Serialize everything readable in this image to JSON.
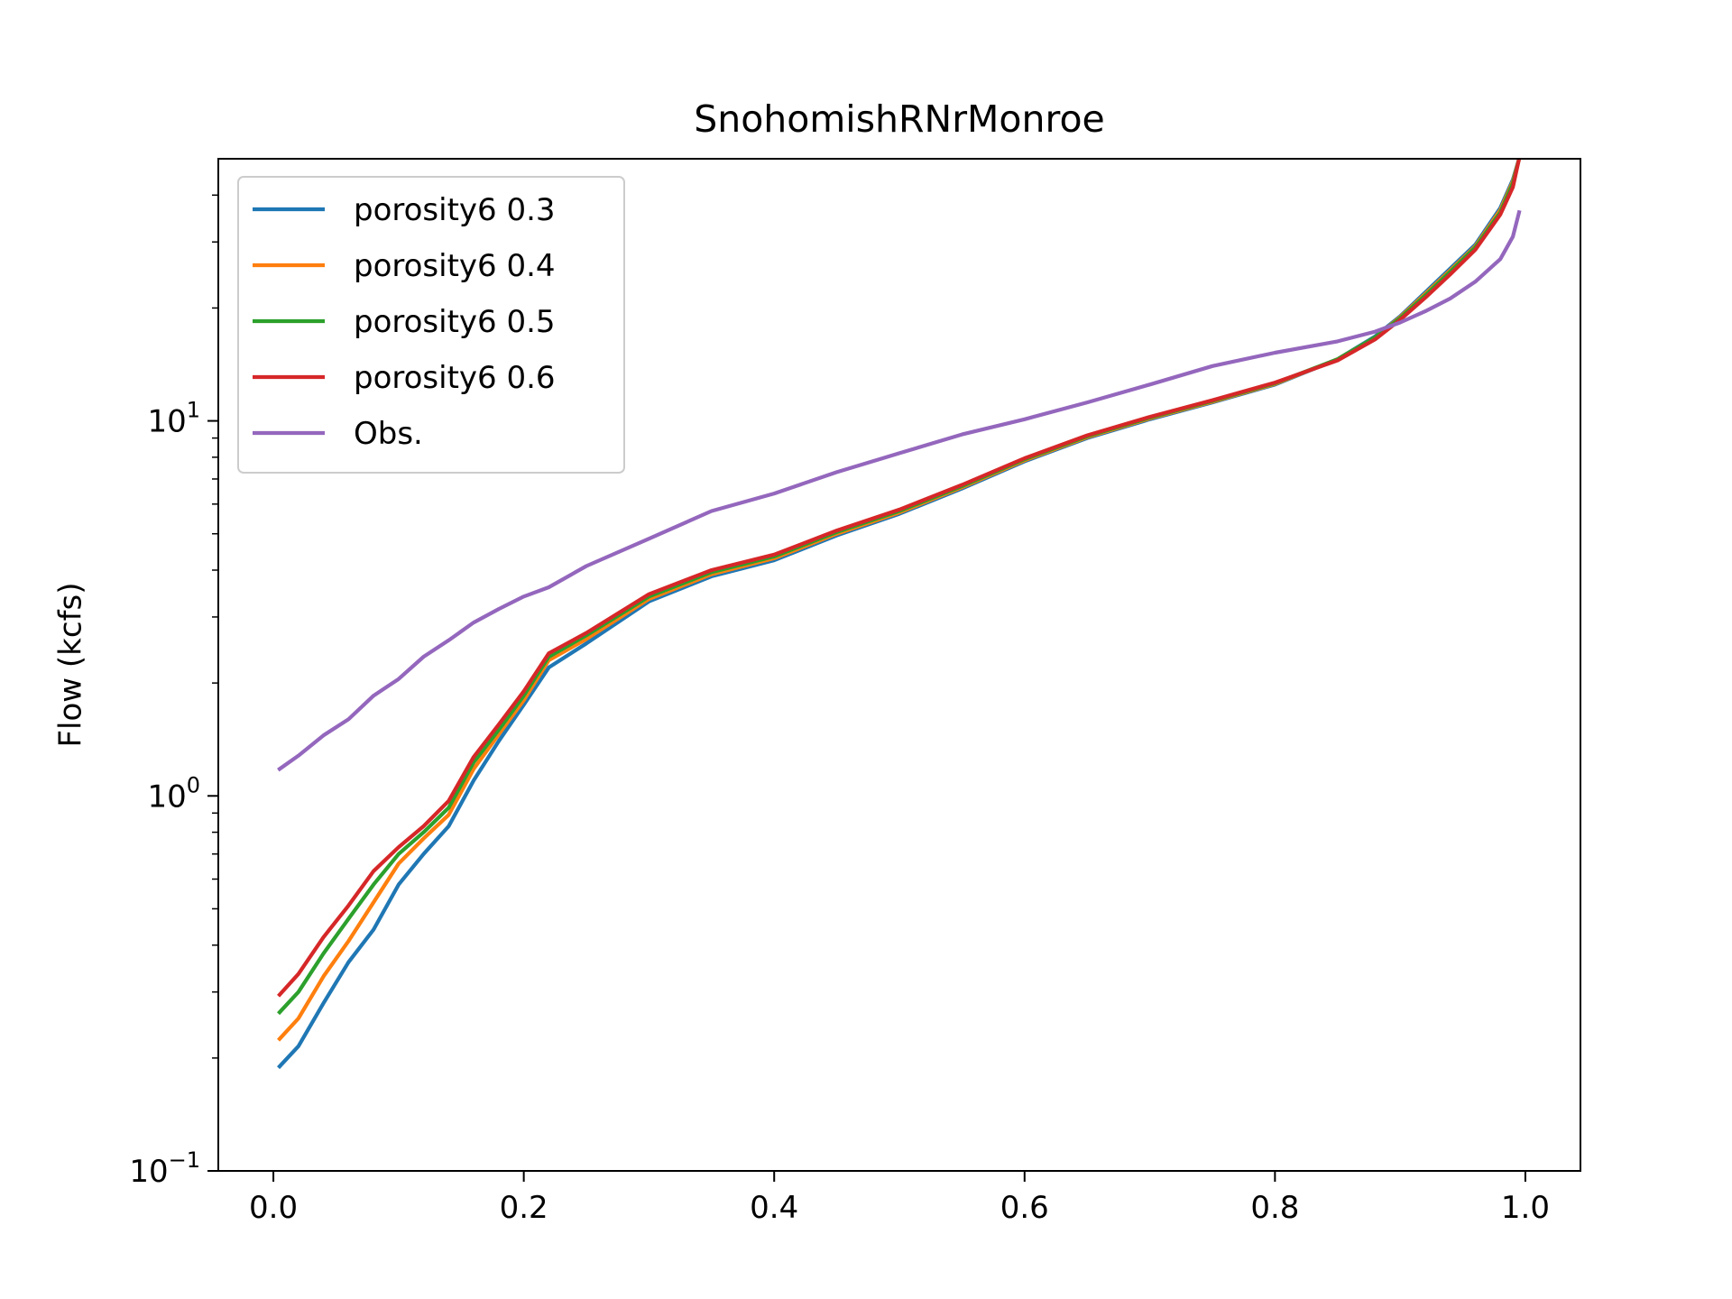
{
  "chart_data": {
    "type": "line",
    "title": "SnohomishRNrMonroe",
    "xlabel": "",
    "ylabel": "Flow (kcfs)",
    "xlim": [
      -0.044,
      1.044
    ],
    "ylim": [
      0.1,
      50
    ],
    "yscale": "log",
    "grid": false,
    "legend_position": "top-left",
    "x_ticks": [
      {
        "value": 0.0,
        "label": "0.0"
      },
      {
        "value": 0.2,
        "label": "0.2"
      },
      {
        "value": 0.4,
        "label": "0.4"
      },
      {
        "value": 0.6,
        "label": "0.6"
      },
      {
        "value": 0.8,
        "label": "0.8"
      },
      {
        "value": 1.0,
        "label": "1.0"
      }
    ],
    "y_ticks": [
      {
        "value": 0.1,
        "base": "10",
        "exp": "−1"
      },
      {
        "value": 1,
        "base": "10",
        "exp": "0"
      },
      {
        "value": 10,
        "base": "10",
        "exp": "1"
      }
    ],
    "x": [
      0.005,
      0.02,
      0.04,
      0.06,
      0.08,
      0.1,
      0.12,
      0.14,
      0.16,
      0.18,
      0.2,
      0.22,
      0.25,
      0.3,
      0.35,
      0.4,
      0.45,
      0.5,
      0.55,
      0.6,
      0.65,
      0.7,
      0.75,
      0.8,
      0.85,
      0.88,
      0.9,
      0.92,
      0.94,
      0.96,
      0.98,
      0.99,
      0.995
    ],
    "series": [
      {
        "name": "porosity6 0.3",
        "color": "#1f77b4",
        "values": [
          0.19,
          0.215,
          0.28,
          0.36,
          0.44,
          0.58,
          0.7,
          0.83,
          1.1,
          1.4,
          1.75,
          2.2,
          2.55,
          3.3,
          3.85,
          4.25,
          4.95,
          5.65,
          6.6,
          7.8,
          9.0,
          10.1,
          11.2,
          12.5,
          14.6,
          16.8,
          19.0,
          22.0,
          25.5,
          29.5,
          37.0,
          44.0,
          50.0
        ]
      },
      {
        "name": "porosity6 0.4",
        "color": "#ff7f0e",
        "values": [
          0.225,
          0.255,
          0.33,
          0.41,
          0.52,
          0.66,
          0.77,
          0.89,
          1.18,
          1.46,
          1.8,
          2.3,
          2.62,
          3.35,
          3.9,
          4.3,
          5.0,
          5.7,
          6.65,
          7.85,
          9.05,
          10.15,
          11.25,
          12.55,
          14.6,
          16.7,
          18.9,
          21.8,
          25.2,
          29.2,
          36.5,
          43.5,
          50.0
        ]
      },
      {
        "name": "porosity6 0.5",
        "color": "#2ca02c",
        "values": [
          0.265,
          0.3,
          0.38,
          0.47,
          0.58,
          0.7,
          0.8,
          0.93,
          1.23,
          1.5,
          1.85,
          2.35,
          2.68,
          3.4,
          3.95,
          4.35,
          5.05,
          5.75,
          6.7,
          7.9,
          9.1,
          10.2,
          11.3,
          12.6,
          14.6,
          16.7,
          18.8,
          21.6,
          25.0,
          29.0,
          36.0,
          43.0,
          50.0
        ]
      },
      {
        "name": "porosity6 0.6",
        "color": "#d62728",
        "values": [
          0.295,
          0.335,
          0.42,
          0.51,
          0.63,
          0.73,
          0.83,
          0.97,
          1.27,
          1.55,
          1.9,
          2.4,
          2.72,
          3.45,
          4.0,
          4.4,
          5.1,
          5.8,
          6.75,
          7.95,
          9.15,
          10.25,
          11.35,
          12.65,
          14.5,
          16.5,
          18.6,
          21.3,
          24.6,
          28.6,
          35.5,
          42.0,
          50.0
        ]
      },
      {
        "name": "Obs.",
        "color": "#9467bd",
        "values": [
          1.18,
          1.28,
          1.45,
          1.6,
          1.85,
          2.05,
          2.35,
          2.6,
          2.9,
          3.15,
          3.4,
          3.6,
          4.1,
          4.85,
          5.75,
          6.4,
          7.3,
          8.2,
          9.2,
          10.1,
          11.2,
          12.5,
          14.0,
          15.2,
          16.3,
          17.3,
          18.3,
          19.6,
          21.2,
          23.5,
          27.0,
          31.0,
          36.0
        ]
      }
    ]
  }
}
